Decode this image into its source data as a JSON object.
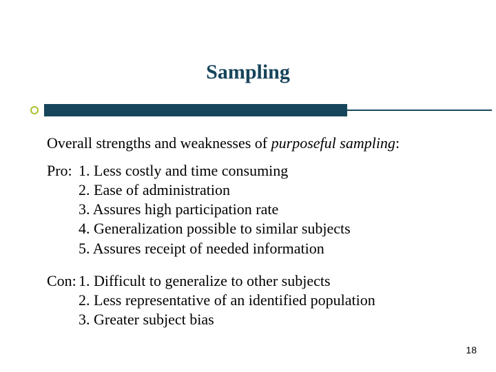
{
  "colors": {
    "title_color": "#17455b",
    "bar_color": "#17455b",
    "bullet_border": "#aabf2e",
    "bullet_fill": "#ffffff",
    "text_color": "#000000",
    "background": "#ffffff"
  },
  "typography": {
    "title_fontsize": 30,
    "body_fontsize": 22,
    "pagenum_fontsize": 14,
    "font_family": "Times New Roman"
  },
  "slide": {
    "title": "Sampling",
    "intro_prefix": "Overall strengths and weaknesses of ",
    "intro_emphasis": "purposeful sampling",
    "intro_suffix": ":",
    "pro_label": "Pro:",
    "con_label": "Con:",
    "pros": [
      "1. Less costly and time consuming",
      "2. Ease of administration",
      "3. Assures high participation rate",
      "4. Generalization possible to similar subjects",
      "5. Assures receipt of needed information"
    ],
    "cons": [
      "1. Difficult to generalize to other subjects",
      "2. Less representative of an identified population",
      "3. Greater subject bias"
    ],
    "page_number": "18"
  }
}
